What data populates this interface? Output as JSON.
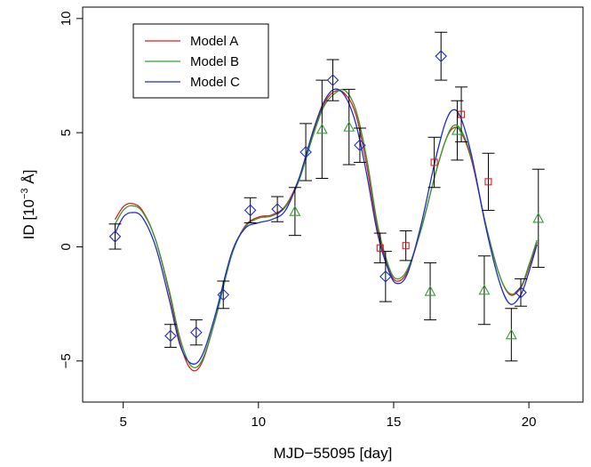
{
  "chart_data": {
    "type": "scatter",
    "title": "",
    "xlabel": "MJD−55095 [day]",
    "ylabel": {
      "prefix": "ID [10",
      "exp": "−3",
      "suffix": " Å]"
    },
    "xlim": [
      3.5,
      22
    ],
    "ylim": [
      -6.8,
      10.5
    ],
    "xticks": [
      5,
      10,
      15,
      20
    ],
    "yticks": [
      -5,
      0,
      5,
      10
    ],
    "grid": false,
    "legend_position": "top-left",
    "legend": [
      {
        "name": "Model A",
        "color": "#e31a1c"
      },
      {
        "name": "Model B",
        "color": "#2ca02c"
      },
      {
        "name": "Model C",
        "color": "#1f2ccc"
      }
    ],
    "model_curves": [
      {
        "name": "Model A",
        "color": "#e31a1c",
        "x": [
          4.7,
          5.0,
          5.3,
          5.7,
          6.2,
          6.7,
          7.1,
          7.5,
          7.9,
          8.4,
          9.0,
          9.5,
          10.0,
          10.5,
          11.0,
          11.5,
          12.0,
          12.4,
          12.8,
          13.2,
          13.6,
          14.0,
          14.4,
          14.8,
          15.1,
          15.5,
          16.0,
          16.5,
          16.9,
          17.2,
          17.5,
          17.9,
          18.4,
          18.9,
          19.3,
          19.7,
          20.0,
          20.3
        ],
        "y": [
          1.2,
          1.75,
          1.9,
          1.6,
          0.3,
          -2.0,
          -4.2,
          -5.35,
          -5.1,
          -3.2,
          -0.4,
          0.9,
          1.3,
          1.4,
          1.8,
          3.0,
          4.9,
          6.2,
          6.8,
          6.7,
          5.8,
          3.6,
          0.8,
          -0.9,
          -1.5,
          -1.1,
          0.7,
          3.0,
          4.6,
          5.2,
          5.0,
          3.7,
          1.0,
          -1.2,
          -2.1,
          -1.8,
          -0.9,
          0.2
        ]
      },
      {
        "name": "Model B",
        "color": "#2ca02c",
        "x": [
          4.7,
          5.0,
          5.3,
          5.7,
          6.2,
          6.7,
          7.1,
          7.5,
          7.9,
          8.4,
          9.0,
          9.5,
          10.0,
          10.5,
          11.0,
          11.5,
          12.0,
          12.4,
          12.8,
          13.2,
          13.6,
          14.0,
          14.4,
          14.8,
          15.1,
          15.5,
          16.0,
          16.5,
          16.9,
          17.2,
          17.5,
          17.9,
          18.4,
          18.9,
          19.3,
          19.7,
          20.0,
          20.3
        ],
        "y": [
          1.0,
          1.6,
          1.8,
          1.55,
          0.3,
          -1.9,
          -4.0,
          -5.2,
          -5.0,
          -3.2,
          -0.4,
          0.85,
          1.25,
          1.35,
          1.75,
          2.9,
          4.8,
          6.1,
          6.7,
          6.85,
          6.0,
          3.9,
          1.0,
          -0.8,
          -1.4,
          -1.0,
          0.7,
          3.0,
          4.6,
          5.3,
          5.1,
          3.8,
          1.0,
          -1.2,
          -2.05,
          -1.75,
          -0.8,
          0.3
        ]
      },
      {
        "name": "Model C",
        "color": "#1f2ccc",
        "x": [
          4.7,
          5.0,
          5.3,
          5.7,
          6.2,
          6.7,
          7.1,
          7.5,
          7.9,
          8.4,
          9.0,
          9.5,
          10.0,
          10.5,
          11.0,
          11.5,
          12.0,
          12.4,
          12.8,
          13.2,
          13.6,
          14.0,
          14.4,
          14.8,
          15.1,
          15.5,
          16.0,
          16.5,
          16.9,
          17.2,
          17.5,
          17.9,
          18.4,
          18.9,
          19.3,
          19.7,
          20.0,
          20.3
        ],
        "y": [
          0.6,
          1.3,
          1.5,
          1.3,
          0.0,
          -2.3,
          -4.3,
          -5.1,
          -4.8,
          -3.0,
          -0.3,
          0.8,
          1.05,
          1.2,
          1.6,
          3.0,
          5.0,
          6.3,
          6.9,
          6.6,
          5.4,
          3.2,
          0.6,
          -1.0,
          -1.6,
          -1.2,
          0.9,
          3.6,
          5.4,
          6.0,
          5.6,
          3.9,
          0.9,
          -1.5,
          -2.5,
          -2.1,
          -1.1,
          0.1
        ]
      }
    ],
    "series": [
      {
        "marker": "diamond",
        "color": "#1f2ccc",
        "points": [
          {
            "x": 4.7,
            "y": 0.45,
            "lo": -0.1,
            "hi": 1.0
          },
          {
            "x": 6.75,
            "y": -3.9,
            "lo": -4.4,
            "hi": -3.4
          },
          {
            "x": 7.7,
            "y": -3.75,
            "lo": -4.3,
            "hi": -3.2
          },
          {
            "x": 8.7,
            "y": -2.1,
            "lo": -2.7,
            "hi": -1.5
          },
          {
            "x": 9.7,
            "y": 1.6,
            "lo": 1.05,
            "hi": 2.15
          },
          {
            "x": 10.7,
            "y": 1.65,
            "lo": 1.1,
            "hi": 2.2
          },
          {
            "x": 11.75,
            "y": 4.15,
            "lo": 2.9,
            "hi": 5.4
          },
          {
            "x": 12.75,
            "y": 7.3,
            "lo": 6.4,
            "hi": 8.2
          },
          {
            "x": 13.75,
            "y": 4.45,
            "lo": 3.7,
            "hi": 5.2
          },
          {
            "x": 14.7,
            "y": -1.3,
            "lo": -2.4,
            "hi": -0.2
          },
          {
            "x": 16.75,
            "y": 8.35,
            "lo": 7.3,
            "hi": 9.4
          },
          {
            "x": 19.7,
            "y": -2.0,
            "lo": -2.6,
            "hi": -1.4
          }
        ]
      },
      {
        "marker": "square",
        "color": "#e31a1c",
        "points": [
          {
            "x": 14.5,
            "y": -0.05,
            "lo": -0.7,
            "hi": 0.6
          },
          {
            "x": 15.45,
            "y": 0.05,
            "lo": -0.6,
            "hi": 0.7
          },
          {
            "x": 16.5,
            "y": 3.7,
            "lo": 2.6,
            "hi": 4.8
          },
          {
            "x": 17.5,
            "y": 5.8,
            "lo": 4.6,
            "hi": 7.0
          },
          {
            "x": 18.5,
            "y": 2.85,
            "lo": 1.6,
            "hi": 4.1
          }
        ]
      },
      {
        "marker": "triangle",
        "color": "#2ca02c",
        "points": [
          {
            "x": 11.35,
            "y": 1.55,
            "lo": 0.5,
            "hi": 2.6
          },
          {
            "x": 12.35,
            "y": 5.15,
            "lo": 3.0,
            "hi": 7.3
          },
          {
            "x": 13.35,
            "y": 5.25,
            "lo": 3.6,
            "hi": 6.9
          },
          {
            "x": 16.35,
            "y": -1.95,
            "lo": -3.2,
            "hi": -0.7
          },
          {
            "x": 17.35,
            "y": 5.1,
            "lo": 3.8,
            "hi": 6.4
          },
          {
            "x": 18.35,
            "y": -1.9,
            "lo": -3.4,
            "hi": -0.4
          },
          {
            "x": 19.35,
            "y": -3.85,
            "lo": -5.0,
            "hi": -2.7
          },
          {
            "x": 20.35,
            "y": 1.25,
            "lo": -0.9,
            "hi": 3.4
          }
        ]
      }
    ]
  }
}
